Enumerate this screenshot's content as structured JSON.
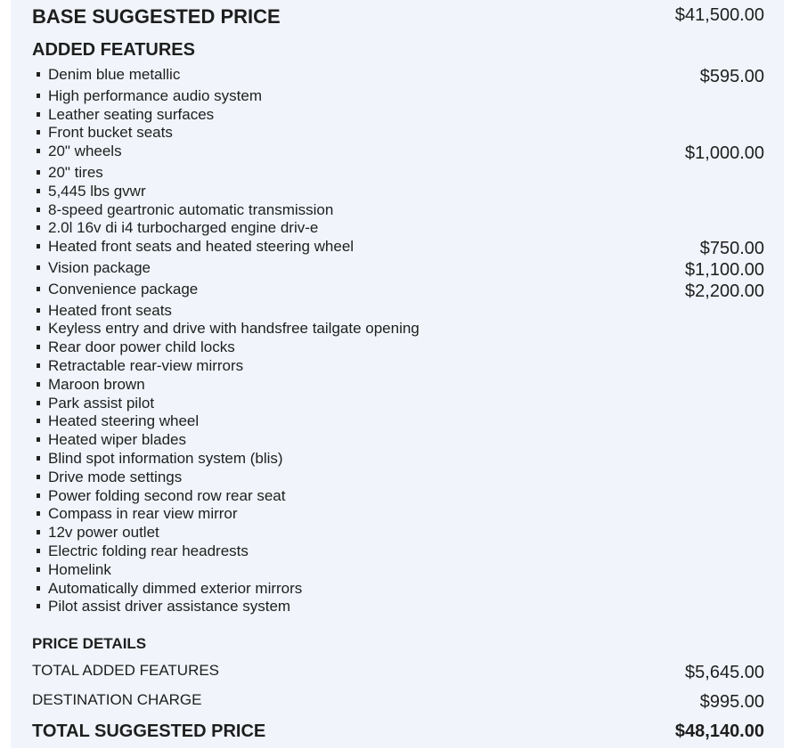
{
  "base": {
    "label": "BASE SUGGESTED PRICE",
    "price": "$41,500.00"
  },
  "added_features": {
    "title": "ADDED FEATURES",
    "items": [
      {
        "label": "Denim blue metallic",
        "price": "$595.00"
      },
      {
        "label": "High performance audio system"
      },
      {
        "label": "Leather seating surfaces"
      },
      {
        "label": "Front bucket seats"
      },
      {
        "label": "20\" wheels",
        "price": "$1,000.00"
      },
      {
        "label": "20\" tires"
      },
      {
        "label": "5,445 lbs gvwr"
      },
      {
        "label": "8-speed geartronic automatic transmission"
      },
      {
        "label": "2.0l 16v di i4 turbocharged engine driv-e"
      },
      {
        "label": "Heated front seats and heated steering wheel",
        "price": "$750.00"
      },
      {
        "label": "Vision package",
        "price": "$1,100.00"
      },
      {
        "label": "Convenience package",
        "price": "$2,200.00"
      },
      {
        "label": "Heated front seats"
      },
      {
        "label": "Keyless entry and drive with handsfree tailgate opening"
      },
      {
        "label": "Rear door power child locks"
      },
      {
        "label": "Retractable rear-view mirrors"
      },
      {
        "label": "Maroon brown"
      },
      {
        "label": "Park assist pilot"
      },
      {
        "label": "Heated steering wheel"
      },
      {
        "label": "Heated wiper blades"
      },
      {
        "label": "Blind spot information system (blis)"
      },
      {
        "label": "Drive mode settings"
      },
      {
        "label": "Power folding second row rear seat"
      },
      {
        "label": "Compass in rear view mirror"
      },
      {
        "label": "12v power outlet"
      },
      {
        "label": "Electric folding rear headrests"
      },
      {
        "label": "Homelink"
      },
      {
        "label": "Automatically dimmed exterior mirrors"
      },
      {
        "label": "Pilot assist driver assistance system"
      }
    ]
  },
  "price_details": {
    "title": "PRICE DETAILS",
    "total_added": {
      "label": "TOTAL ADDED FEATURES",
      "price": "$5,645.00"
    },
    "destination": {
      "label": "DESTINATION CHARGE",
      "price": "$995.00"
    },
    "total": {
      "label": "TOTAL SUGGESTED PRICE",
      "price": "$48,140.00"
    }
  },
  "colors": {
    "panel_bg": "#f1f5fb",
    "text": "#1e1e1e"
  }
}
